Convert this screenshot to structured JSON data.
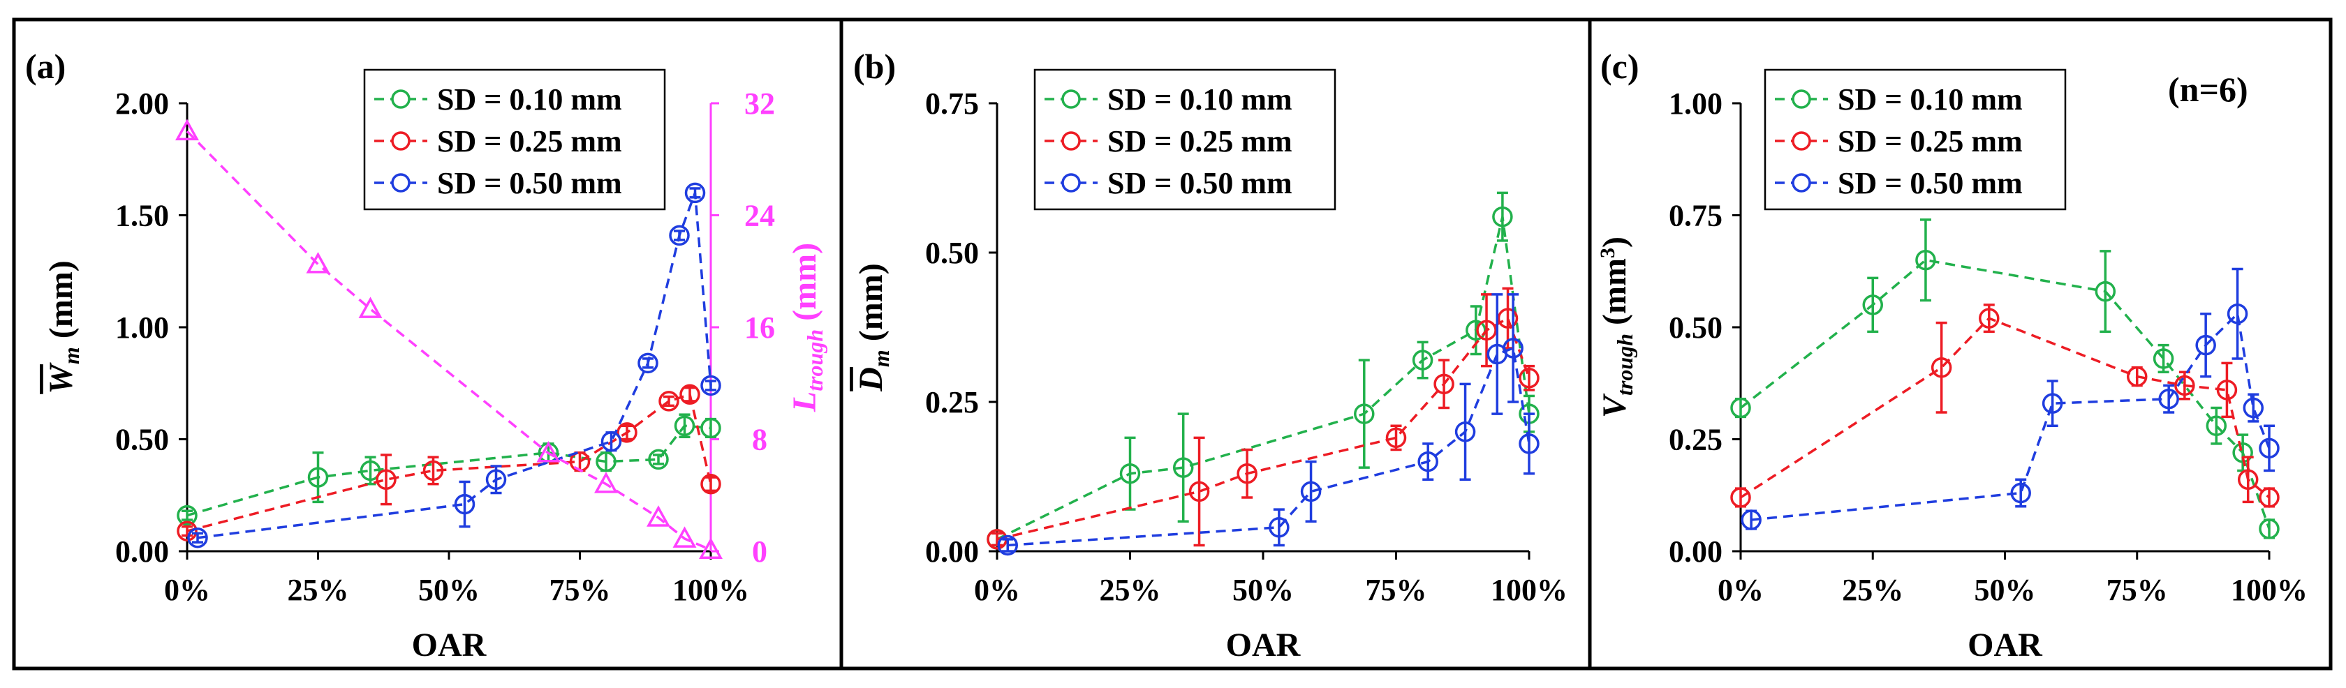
{
  "colors": {
    "green": "#22b14c",
    "red": "#ed1c24",
    "blue": "#1f3ddf",
    "magenta": "#ff40ff",
    "black": "#000000"
  },
  "chart_data": [
    {
      "panel": "(a)",
      "type": "line",
      "xlabel": "OAR",
      "ylabel": "W̄m (mm)",
      "ylabel_main": "W",
      "ylabel_sub": "m",
      "ylabel_unit": " (mm)",
      "y2label_main": "L",
      "y2label_sub": "trough",
      "y2label_unit": " (mm)",
      "xlim": [
        0,
        100
      ],
      "ylim": [
        0,
        2.0
      ],
      "y2lim": [
        0,
        32
      ],
      "xticks": [
        0,
        25,
        50,
        75,
        100
      ],
      "xtick_labels": [
        "0%",
        "25%",
        "50%",
        "75%",
        "100%"
      ],
      "yticks": [
        0,
        0.5,
        1.0,
        1.5,
        2.0
      ],
      "ytick_labels": [
        "0.00",
        "0.50",
        "1.00",
        "1.50",
        "2.00"
      ],
      "y2ticks": [
        0,
        8,
        16,
        24,
        32
      ],
      "y2tick_labels": [
        "0",
        "8",
        "16",
        "24",
        "32"
      ],
      "legend": [
        "SD = 0.10 mm",
        "SD = 0.25 mm",
        "SD = 0.50 mm"
      ],
      "series": [
        {
          "name": "SD = 0.10 mm",
          "color": "green",
          "axis": "y",
          "marker": "circle",
          "x": [
            0,
            25,
            35,
            69,
            80,
            90,
            95,
            100
          ],
          "y": [
            0.16,
            0.33,
            0.36,
            0.44,
            0.4,
            0.41,
            0.56,
            0.55
          ],
          "err": [
            0.02,
            0.11,
            0.06,
            0.04,
            0.04,
            0.02,
            0.05,
            0.04
          ]
        },
        {
          "name": "SD = 0.25 mm",
          "color": "red",
          "axis": "y",
          "marker": "circle",
          "x": [
            0,
            38,
            47,
            75,
            84,
            92,
            96,
            100
          ],
          "y": [
            0.09,
            0.32,
            0.36,
            0.4,
            0.53,
            0.67,
            0.7,
            0.3
          ],
          "err": [
            0.02,
            0.11,
            0.06,
            0.04,
            0.03,
            0.02,
            0.03,
            0.03
          ]
        },
        {
          "name": "SD = 0.50 mm",
          "color": "blue",
          "axis": "y",
          "marker": "circle",
          "x": [
            2,
            53,
            59,
            81,
            88,
            94,
            97,
            100
          ],
          "y": [
            0.06,
            0.21,
            0.32,
            0.49,
            0.84,
            1.41,
            1.6,
            0.74
          ],
          "err": [
            0.02,
            0.1,
            0.06,
            0.04,
            0.02,
            0.02,
            0.02,
            0.02
          ]
        },
        {
          "name": "L_trough",
          "color": "magenta",
          "axis": "y2",
          "marker": "triangle",
          "x": [
            0,
            25,
            35,
            69,
            80,
            90,
            95,
            100
          ],
          "y": [
            30,
            20.5,
            17.3,
            7.0,
            4.8,
            2.4,
            0.9,
            0.1
          ]
        }
      ]
    },
    {
      "panel": "(b)",
      "type": "line",
      "xlabel": "OAR",
      "ylabel": "D̄m (mm)",
      "ylabel_main": "D",
      "ylabel_sub": "m",
      "ylabel_unit": " (mm)",
      "xlim": [
        0,
        100
      ],
      "ylim": [
        0,
        0.75
      ],
      "xticks": [
        0,
        25,
        50,
        75,
        100
      ],
      "xtick_labels": [
        "0%",
        "25%",
        "50%",
        "75%",
        "100%"
      ],
      "yticks": [
        0,
        0.25,
        0.5,
        0.75
      ],
      "ytick_labels": [
        "0.00",
        "0.25",
        "0.50",
        "0.75"
      ],
      "legend": [
        "SD = 0.10 mm",
        "SD = 0.25 mm",
        "SD = 0.50 mm"
      ],
      "series": [
        {
          "name": "SD = 0.10 mm",
          "color": "green",
          "marker": "circle",
          "x": [
            0,
            25,
            35,
            69,
            80,
            90,
            95,
            100
          ],
          "y": [
            0.02,
            0.13,
            0.14,
            0.23,
            0.32,
            0.37,
            0.56,
            0.23
          ],
          "err": [
            0.01,
            0.06,
            0.09,
            0.09,
            0.03,
            0.04,
            0.04,
            0.03
          ]
        },
        {
          "name": "SD = 0.25 mm",
          "color": "red",
          "marker": "circle",
          "x": [
            0,
            38,
            47,
            75,
            84,
            92,
            96,
            100
          ],
          "y": [
            0.02,
            0.1,
            0.13,
            0.19,
            0.28,
            0.37,
            0.39,
            0.29
          ],
          "err": [
            0.01,
            0.09,
            0.04,
            0.02,
            0.04,
            0.06,
            0.05,
            0.02
          ]
        },
        {
          "name": "SD = 0.50 mm",
          "color": "blue",
          "marker": "circle",
          "x": [
            2,
            53,
            59,
            81,
            88,
            94,
            97,
            100
          ],
          "y": [
            0.01,
            0.04,
            0.1,
            0.15,
            0.2,
            0.33,
            0.34,
            0.18
          ],
          "err": [
            0.01,
            0.03,
            0.05,
            0.03,
            0.08,
            0.1,
            0.09,
            0.05
          ]
        }
      ]
    },
    {
      "panel": "(c)",
      "type": "line",
      "xlabel": "OAR",
      "ylabel": "Vtrough (mm3)",
      "ylabel_main": "V",
      "ylabel_sub": "trough",
      "ylabel_unit": " (mm",
      "ylabel_sup": "3",
      "ylabel_close": ")",
      "annotation": "(n=6)",
      "xlim": [
        0,
        100
      ],
      "ylim": [
        0,
        1.0
      ],
      "xticks": [
        0,
        25,
        50,
        75,
        100
      ],
      "xtick_labels": [
        "0%",
        "25%",
        "50%",
        "75%",
        "100%"
      ],
      "yticks": [
        0,
        0.25,
        0.5,
        0.75,
        1.0
      ],
      "ytick_labels": [
        "0.00",
        "0.25",
        "0.50",
        "0.75",
        "1.00"
      ],
      "legend": [
        "SD = 0.10 mm",
        "SD = 0.25 mm",
        "SD = 0.50 mm"
      ],
      "series": [
        {
          "name": "SD = 0.10 mm",
          "color": "green",
          "marker": "circle",
          "x": [
            0,
            25,
            35,
            69,
            80,
            90,
            95,
            100
          ],
          "y": [
            0.32,
            0.55,
            0.65,
            0.58,
            0.43,
            0.28,
            0.22,
            0.05
          ],
          "err": [
            0.02,
            0.06,
            0.09,
            0.09,
            0.03,
            0.04,
            0.04,
            0.02
          ]
        },
        {
          "name": "SD = 0.25 mm",
          "color": "red",
          "marker": "circle",
          "x": [
            0,
            38,
            47,
            75,
            84,
            92,
            96,
            100
          ],
          "y": [
            0.12,
            0.41,
            0.52,
            0.39,
            0.37,
            0.36,
            0.16,
            0.12
          ],
          "err": [
            0.02,
            0.1,
            0.03,
            0.02,
            0.03,
            0.06,
            0.05,
            0.02
          ]
        },
        {
          "name": "SD = 0.50 mm",
          "color": "blue",
          "marker": "circle",
          "x": [
            2,
            53,
            59,
            81,
            88,
            94,
            97,
            100
          ],
          "y": [
            0.07,
            0.13,
            0.33,
            0.34,
            0.46,
            0.53,
            0.32,
            0.23
          ],
          "err": [
            0.02,
            0.03,
            0.05,
            0.03,
            0.07,
            0.1,
            0.03,
            0.05
          ]
        }
      ]
    }
  ]
}
